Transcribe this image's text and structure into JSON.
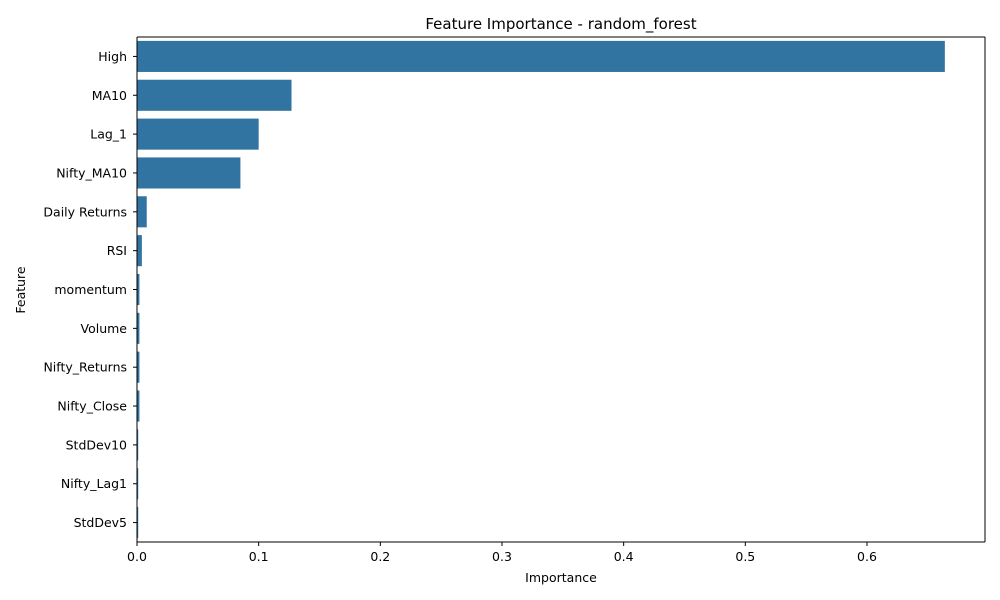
{
  "chart_data": {
    "type": "bar",
    "orientation": "horizontal",
    "title": "Feature Importance - random_forest",
    "xlabel": "Importance",
    "ylabel": "Feature",
    "xlim": [
      0,
      0.697
    ],
    "xticks": [
      0.0,
      0.1,
      0.2,
      0.3,
      0.4,
      0.5,
      0.6
    ],
    "xtick_labels": [
      "0.0",
      "0.1",
      "0.2",
      "0.3",
      "0.4",
      "0.5",
      "0.6"
    ],
    "grid": false,
    "bar_color": "#3274a1",
    "categories": [
      "High",
      "MA10",
      "Lag_1",
      "Nifty_MA10",
      "Daily Returns",
      "RSI",
      "momentum",
      "Volume",
      "Nifty_Returns",
      "Nifty_Close",
      "StdDev10",
      "Nifty_Lag1",
      "StdDev5"
    ],
    "values": [
      0.664,
      0.127,
      0.1,
      0.085,
      0.008,
      0.004,
      0.002,
      0.002,
      0.002,
      0.002,
      0.001,
      0.001,
      0.001
    ]
  }
}
